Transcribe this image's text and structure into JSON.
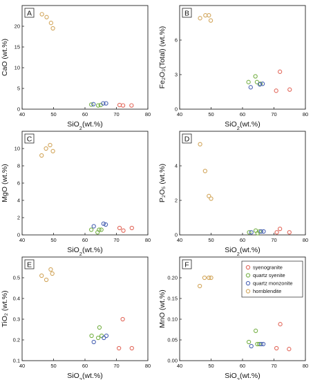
{
  "legend": {
    "entries": [
      {
        "label": "syenogranite",
        "color": "#e2675a"
      },
      {
        "label": "quartz syenite",
        "color": "#76b046"
      },
      {
        "label": "quartz monzonite",
        "color": "#4a63b3"
      },
      {
        "label": "hornblendite",
        "color": "#d2a65c"
      }
    ]
  },
  "chart_data": [
    {
      "type": "scatter",
      "panel": "A",
      "xlabel": {
        "base": "SiO",
        "sub": "2",
        "suffix": "(wt.%)"
      },
      "ylabel": "CaO (wt.%)",
      "xlim": [
        40,
        80
      ],
      "ylim": [
        0,
        25
      ],
      "xticks": [
        40,
        50,
        60,
        70,
        80
      ],
      "yticks": [
        0,
        5,
        10,
        15,
        20
      ],
      "series": [
        {
          "name": "hornblendite",
          "points": [
            [
              46.3,
              22.9
            ],
            [
              47.8,
              22.2
            ],
            [
              49.2,
              20.8
            ],
            [
              49.8,
              19.5
            ]
          ]
        },
        {
          "name": "quartz syenite",
          "points": [
            [
              62.0,
              1.1
            ],
            [
              64.2,
              0.9
            ],
            [
              65.0,
              1.0
            ]
          ]
        },
        {
          "name": "quartz monzonite",
          "points": [
            [
              62.7,
              1.2
            ],
            [
              65.8,
              1.4
            ],
            [
              66.7,
              1.4
            ]
          ]
        },
        {
          "name": "syenogranite",
          "points": [
            [
              71.0,
              1.0
            ],
            [
              72.1,
              0.9
            ],
            [
              74.8,
              0.9
            ]
          ]
        }
      ]
    },
    {
      "type": "scatter",
      "panel": "B",
      "xlabel": {
        "base": "SiO",
        "sub": "2",
        "suffix": "(wt.%)"
      },
      "ylabel": "Fe₂O₃(Total) (wt.%)",
      "xlim": [
        40,
        80
      ],
      "ylim": [
        0,
        9
      ],
      "xticks": [
        40,
        50,
        60,
        70,
        80
      ],
      "yticks": [
        0,
        3,
        6
      ],
      "series": [
        {
          "name": "hornblendite",
          "points": [
            [
              46.5,
              7.9
            ],
            [
              48.2,
              8.15
            ],
            [
              49.3,
              8.15
            ],
            [
              49.9,
              7.7
            ]
          ]
        },
        {
          "name": "quartz syenite",
          "points": [
            [
              61.9,
              2.35
            ],
            [
              64.1,
              2.85
            ],
            [
              64.6,
              2.35
            ],
            [
              65.7,
              2.2
            ]
          ]
        },
        {
          "name": "quartz monzonite",
          "points": [
            [
              62.6,
              1.9
            ],
            [
              65.5,
              2.15
            ],
            [
              66.4,
              2.2
            ]
          ]
        },
        {
          "name": "syenogranite",
          "points": [
            [
              70.7,
              1.6
            ],
            [
              71.9,
              3.25
            ],
            [
              75.0,
              1.7
            ]
          ]
        }
      ]
    },
    {
      "type": "scatter",
      "panel": "C",
      "xlabel": {
        "base": "SiO",
        "sub": "2",
        "suffix": "(wt.%)"
      },
      "ylabel": "MgO (wt.%)",
      "xlim": [
        40,
        80
      ],
      "ylim": [
        0,
        12
      ],
      "xticks": [
        40,
        50,
        60,
        70,
        80
      ],
      "yticks": [
        0,
        2,
        4,
        6,
        8,
        10
      ],
      "series": [
        {
          "name": "hornblendite",
          "points": [
            [
              46.2,
              9.2
            ],
            [
              47.6,
              10.0
            ],
            [
              48.9,
              10.4
            ],
            [
              49.8,
              9.7
            ]
          ]
        },
        {
          "name": "quartz syenite",
          "points": [
            [
              62.0,
              0.6
            ],
            [
              64.0,
              0.3
            ],
            [
              64.5,
              0.6
            ],
            [
              65.2,
              0.6
            ]
          ]
        },
        {
          "name": "quartz monzonite",
          "points": [
            [
              62.8,
              1.0
            ],
            [
              65.9,
              1.3
            ],
            [
              66.6,
              1.2
            ]
          ]
        },
        {
          "name": "syenogranite",
          "points": [
            [
              71.0,
              0.8
            ],
            [
              72.2,
              0.5
            ],
            [
              74.9,
              0.8
            ]
          ]
        }
      ]
    },
    {
      "type": "scatter",
      "panel": "D",
      "xlabel": {
        "base": "SiO",
        "sub": "2",
        "suffix": "(wt.%)"
      },
      "ylabel": "P₂O₅ (wt.%)",
      "xlim": [
        40,
        80
      ],
      "ylim": [
        0,
        6
      ],
      "xticks": [
        40,
        50,
        60,
        70,
        80
      ],
      "yticks": [
        0,
        2,
        4
      ],
      "series": [
        {
          "name": "hornblendite",
          "points": [
            [
              46.5,
              5.25
            ],
            [
              48.1,
              3.7
            ],
            [
              49.3,
              2.25
            ],
            [
              50.0,
              2.1
            ]
          ]
        },
        {
          "name": "quartz syenite",
          "points": [
            [
              62.1,
              0.15
            ],
            [
              64.2,
              0.25
            ],
            [
              64.8,
              0.1
            ],
            [
              65.4,
              0.2
            ]
          ]
        },
        {
          "name": "quartz monzonite",
          "points": [
            [
              62.8,
              0.15
            ],
            [
              65.9,
              0.2
            ],
            [
              66.7,
              0.2
            ]
          ]
        },
        {
          "name": "syenogranite",
          "points": [
            [
              70.9,
              0.15
            ],
            [
              71.9,
              0.35
            ],
            [
              74.9,
              0.15
            ]
          ]
        }
      ]
    },
    {
      "type": "scatter",
      "panel": "E",
      "xlabel": {
        "base": "SiO",
        "sub": "2",
        "suffix": "(wt.%)"
      },
      "ylabel": "TiO₂ (wt.%)",
      "xlim": [
        40,
        80
      ],
      "ylim": [
        0.1,
        0.6
      ],
      "xticks": [
        40,
        50,
        60,
        70,
        80
      ],
      "yticks": [
        0.1,
        0.2,
        0.3,
        0.4,
        0.5
      ],
      "series": [
        {
          "name": "hornblendite",
          "points": [
            [
              46.2,
              0.51
            ],
            [
              47.7,
              0.49
            ],
            [
              49.1,
              0.54
            ],
            [
              49.6,
              0.52
            ]
          ]
        },
        {
          "name": "quartz syenite",
          "points": [
            [
              62.1,
              0.22
            ],
            [
              64.2,
              0.21
            ],
            [
              64.6,
              0.26
            ],
            [
              65.3,
              0.22
            ]
          ]
        },
        {
          "name": "quartz monzonite",
          "points": [
            [
              62.8,
              0.19
            ],
            [
              66.0,
              0.21
            ],
            [
              66.8,
              0.22
            ]
          ]
        },
        {
          "name": "syenogranite",
          "points": [
            [
              70.8,
              0.16
            ],
            [
              72.0,
              0.3
            ],
            [
              74.9,
              0.16
            ]
          ]
        }
      ]
    },
    {
      "type": "scatter",
      "panel": "F",
      "xlabel": {
        "base": "SiO",
        "sub": "2",
        "suffix": "(wt.%)"
      },
      "ylabel": "MnO (wt.%)",
      "xlim": [
        40,
        80
      ],
      "ylim": [
        0,
        0.25
      ],
      "xticks": [
        40,
        50,
        60,
        70,
        80
      ],
      "yticks": [
        0,
        0.05,
        0.1,
        0.15,
        0.2
      ],
      "ytick_labels": [
        "0.00",
        "0.05",
        "0.10",
        "0.15",
        "0.20"
      ],
      "series": [
        {
          "name": "hornblendite",
          "points": [
            [
              46.4,
              0.18
            ],
            [
              47.9,
              0.2
            ],
            [
              49.3,
              0.2
            ],
            [
              50.0,
              0.2
            ]
          ]
        },
        {
          "name": "quartz syenite",
          "points": [
            [
              62.0,
              0.045
            ],
            [
              64.2,
              0.072
            ],
            [
              64.7,
              0.04
            ],
            [
              65.3,
              0.04
            ]
          ]
        },
        {
          "name": "quartz monzonite",
          "points": [
            [
              62.8,
              0.035
            ],
            [
              65.9,
              0.04
            ],
            [
              66.6,
              0.04
            ]
          ]
        },
        {
          "name": "syenogranite",
          "points": [
            [
              70.8,
              0.03
            ],
            [
              72.0,
              0.088
            ],
            [
              74.8,
              0.028
            ]
          ]
        }
      ]
    }
  ]
}
